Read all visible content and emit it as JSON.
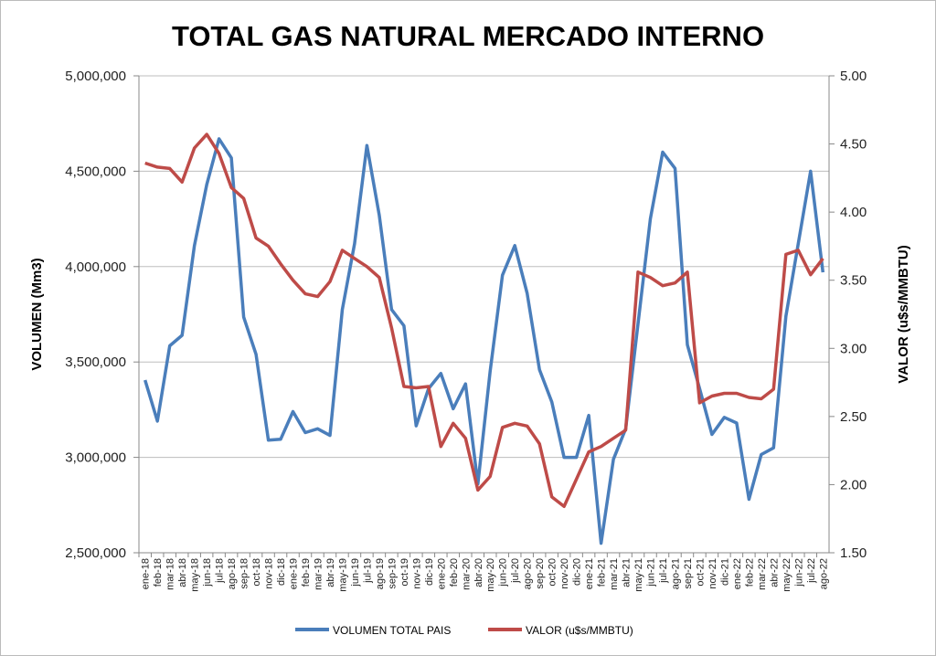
{
  "chart_data": {
    "type": "line",
    "title": "TOTAL GAS NATURAL MERCADO INTERNO",
    "ylabel": "VOLUMEN (Mm3)",
    "y2label": "VALOR (u$s/MMBTU)",
    "ylim": [
      2500000,
      5000000
    ],
    "y2lim": [
      1.5,
      5.0
    ],
    "yticks": [
      "2,500,000",
      "3,000,000",
      "3,500,000",
      "4,000,000",
      "4,500,000",
      "5,000,000"
    ],
    "y2ticks": [
      "1.50",
      "2.00",
      "2.50",
      "3.00",
      "3.50",
      "4.00",
      "4.50",
      "5.00"
    ],
    "grid": true,
    "legend_position": "bottom",
    "categories": [
      "ene-18",
      "feb-18",
      "mar-18",
      "abr-18",
      "may-18",
      "jun-18",
      "jul-18",
      "ago-18",
      "sep-18",
      "oct-18",
      "nov-18",
      "dic-18",
      "ene-19",
      "feb-19",
      "mar-19",
      "abr-19",
      "may-19",
      "jun-19",
      "jul-19",
      "ago-19",
      "sep-19",
      "oct-19",
      "nov-19",
      "dic-19",
      "ene-20",
      "feb-20",
      "mar-20",
      "abr-20",
      "may-20",
      "jun-20",
      "jul-20",
      "ago-20",
      "sep-20",
      "oct-20",
      "nov-20",
      "dic-20",
      "ene-21",
      "feb-21",
      "mar-21",
      "abr-21",
      "may-21",
      "jun-21",
      "jul-21",
      "ago-21",
      "sep-21",
      "oct-21",
      "nov-21",
      "dic-21",
      "ene-22",
      "feb-22",
      "mar-22",
      "abr-22",
      "may-22",
      "jun-22",
      "jul-22",
      "ago-22"
    ],
    "series": [
      {
        "name": "VOLUMEN TOTAL PAIS",
        "axis": "left",
        "color": "#4a7ebb",
        "values": [
          3405000,
          3190000,
          3585000,
          3640000,
          4110000,
          4430000,
          4670000,
          4570000,
          3735000,
          3540000,
          3090000,
          3095000,
          3240000,
          3130000,
          3150000,
          3115000,
          3775000,
          4120000,
          4635000,
          4270000,
          3775000,
          3690000,
          3165000,
          3360000,
          3440000,
          3255000,
          3385000,
          2860000,
          3450000,
          3955000,
          4110000,
          3860000,
          3460000,
          3290000,
          3000000,
          3000000,
          3220000,
          2550000,
          2990000,
          3150000,
          3700000,
          4250000,
          4600000,
          4515000,
          3590000,
          3360000,
          3120000,
          3210000,
          3180000,
          2780000,
          3015000,
          3050000,
          3740000,
          4120000,
          4500000,
          3970000
        ]
      },
      {
        "name": "VALOR (u$s/MMBTU)",
        "axis": "right",
        "color": "#be4b48",
        "values": [
          4.36,
          4.33,
          4.32,
          4.22,
          4.47,
          4.57,
          4.43,
          4.18,
          4.1,
          3.81,
          3.75,
          3.62,
          3.5,
          3.4,
          3.38,
          3.49,
          3.72,
          3.66,
          3.6,
          3.52,
          3.15,
          2.72,
          2.71,
          2.72,
          2.28,
          2.45,
          2.34,
          1.96,
          2.06,
          2.42,
          2.45,
          2.43,
          2.3,
          1.91,
          1.84,
          2.04,
          2.24,
          2.28,
          2.34,
          2.4,
          3.56,
          3.52,
          3.46,
          3.48,
          3.56,
          2.6,
          2.65,
          2.67,
          2.67,
          2.64,
          2.63,
          2.7,
          3.69,
          3.72,
          3.54,
          3.66
        ]
      }
    ]
  }
}
